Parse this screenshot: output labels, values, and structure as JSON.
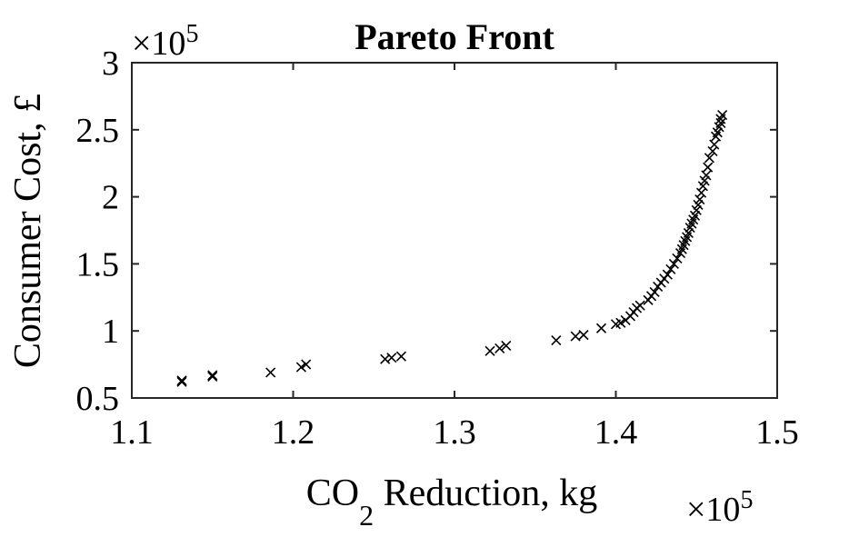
{
  "chart_data": {
    "type": "scatter",
    "title": "Pareto Front",
    "xlabel_main": "CO",
    "xlabel_sub": "2",
    "xlabel_rest": " Reduction, kg",
    "ylabel": "Consumer Cost, £",
    "x_multiplier": "×10",
    "x_multiplier_exp": "5",
    "y_multiplier": "×10",
    "y_multiplier_exp": "5",
    "xlim": [
      1.1,
      1.5
    ],
    "ylim": [
      0.5,
      3
    ],
    "xticks": [
      "1.1",
      "1.2",
      "1.3",
      "1.4",
      "1.5"
    ],
    "yticks": [
      "0.5",
      "1",
      "1.5",
      "2",
      "2.5",
      "3"
    ],
    "marker": "x",
    "color": "#000000",
    "x": [
      1.131,
      1.131,
      1.15,
      1.15,
      1.186,
      1.205,
      1.208,
      1.257,
      1.261,
      1.267,
      1.322,
      1.328,
      1.332,
      1.363,
      1.375,
      1.38,
      1.391,
      1.4,
      1.403,
      1.406,
      1.409,
      1.411,
      1.413,
      1.415,
      1.42,
      1.422,
      1.424,
      1.426,
      1.428,
      1.43,
      1.432,
      1.434,
      1.436,
      1.438,
      1.44,
      1.441,
      1.442,
      1.443,
      1.444,
      1.445,
      1.446,
      1.447,
      1.448,
      1.449,
      1.45,
      1.451,
      1.452,
      1.453,
      1.454,
      1.455,
      1.456,
      1.457,
      1.458,
      1.46,
      1.461,
      1.462,
      1.463,
      1.464,
      1.465,
      1.465,
      1.466
    ],
    "y": [
      0.62,
      0.63,
      0.66,
      0.67,
      0.69,
      0.73,
      0.75,
      0.79,
      0.8,
      0.81,
      0.85,
      0.87,
      0.89,
      0.93,
      0.96,
      0.97,
      1.02,
      1.05,
      1.06,
      1.08,
      1.11,
      1.14,
      1.17,
      1.19,
      1.23,
      1.26,
      1.29,
      1.33,
      1.36,
      1.39,
      1.42,
      1.46,
      1.5,
      1.54,
      1.58,
      1.61,
      1.64,
      1.67,
      1.7,
      1.73,
      1.77,
      1.8,
      1.83,
      1.86,
      1.9,
      1.94,
      1.98,
      2.03,
      2.08,
      2.12,
      2.16,
      2.22,
      2.29,
      2.34,
      2.39,
      2.45,
      2.48,
      2.52,
      2.55,
      2.58,
      2.61
    ]
  }
}
